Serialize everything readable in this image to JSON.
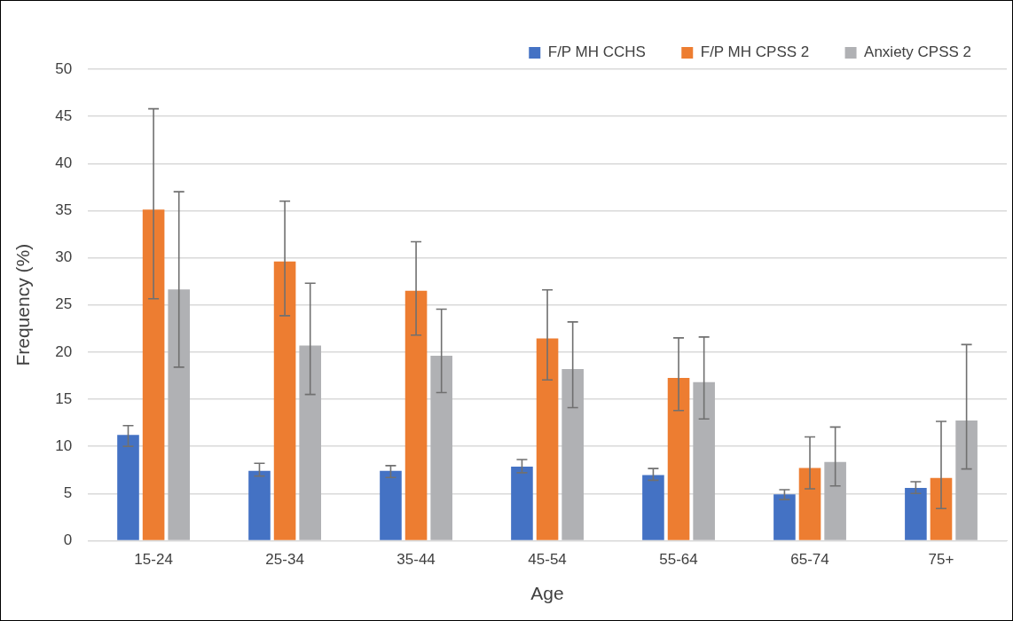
{
  "chart_data": {
    "type": "bar",
    "xlabel": "Age",
    "ylabel": "Frequency (%)",
    "categories": [
      "15-24",
      "25-34",
      "35-44",
      "45-54",
      "55-64",
      "65-74",
      "75+"
    ],
    "series": [
      {
        "name": "F/P MH CCHS",
        "color": "#4472c4",
        "values": [
          11.2,
          7.4,
          7.4,
          7.85,
          6.95,
          4.9,
          5.6
        ],
        "errors": [
          [
            10.0,
            12.2
          ],
          [
            6.85,
            8.2
          ],
          [
            6.7,
            7.95
          ],
          [
            7.2,
            8.6
          ],
          [
            6.4,
            7.65
          ],
          [
            4.35,
            5.4
          ],
          [
            5.0,
            6.25
          ]
        ]
      },
      {
        "name": "F/P MH CPSS 2",
        "color": "#ed7d31",
        "values": [
          35.1,
          29.6,
          26.5,
          21.45,
          17.25,
          7.7,
          6.65
        ],
        "errors": [
          [
            25.65,
            45.8
          ],
          [
            23.85,
            36.0
          ],
          [
            21.8,
            31.7
          ],
          [
            17.05,
            26.6
          ],
          [
            13.8,
            21.5
          ],
          [
            5.5,
            11.0
          ],
          [
            3.4,
            12.65
          ]
        ]
      },
      {
        "name": "Anxiety CPSS 2",
        "color": "#b0b1b4",
        "values": [
          26.65,
          20.7,
          19.6,
          18.2,
          16.8,
          8.35,
          12.75
        ],
        "errors": [
          [
            18.4,
            37.0
          ],
          [
            15.5,
            27.3
          ],
          [
            15.7,
            24.55
          ],
          [
            14.1,
            23.2
          ],
          [
            12.9,
            21.6
          ],
          [
            5.8,
            12.05
          ],
          [
            7.6,
            20.8
          ]
        ]
      }
    ],
    "ylim": [
      0,
      50
    ],
    "yticks": [
      0,
      5,
      10,
      15,
      20,
      25,
      30,
      35,
      40,
      45,
      50
    ],
    "grid": "y",
    "legend": "top right"
  }
}
